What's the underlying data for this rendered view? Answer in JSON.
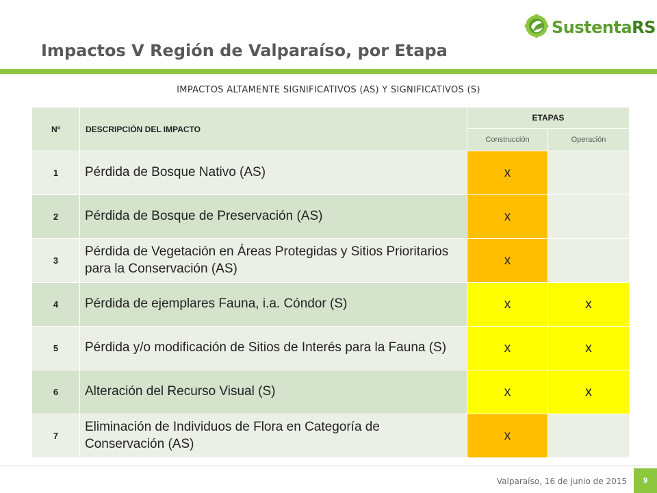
{
  "logo": {
    "part1": "Sustenta",
    "part2": "RSE",
    "icon": "gear-leaf-icon",
    "colors": {
      "light": "#5d9e30",
      "dark": "#3f7f1d"
    }
  },
  "title": "Impactos V Región de Valparaíso, por Etapa",
  "subtitle": "IMPACTOS ALTAMENTE SIGNIFICATIVOS (AS) Y SIGNIFICATIVOS (S)",
  "table": {
    "headers": {
      "num": "Nº",
      "description": "DESCRIPCIÓN DEL IMPACTO",
      "stages": "ETAPAS",
      "construction": "Construcción",
      "operation": "Operación"
    },
    "rows": [
      {
        "num": "1",
        "description": "Pérdida de Bosque Nativo  (AS)",
        "construction": "x",
        "operation": ""
      },
      {
        "num": "2",
        "description": "Pérdida de Bosque de Preservación (AS)",
        "construction": "x",
        "operation": ""
      },
      {
        "num": "3",
        "description": "Pérdida de Vegetación en Áreas Protegidas y Sitios Prioritarios para la Conservación (AS)",
        "construction": "x",
        "operation": ""
      },
      {
        "num": "4",
        "description": "Pérdida de ejemplares Fauna, i.a. Cóndor (S)",
        "construction": "x",
        "operation": "x"
      },
      {
        "num": "5",
        "description": "Pérdida y/o modificación de Sitios de Interés para la Fauna (S)",
        "construction": "x",
        "operation": "x"
      },
      {
        "num": "6",
        "description": "Alteración del Recurso Visual (S)",
        "construction": "x",
        "operation": "x"
      },
      {
        "num": "7",
        "description": "Eliminación de Individuos de Flora en Categoría de Conservación (AS)",
        "construction": "x",
        "operation": ""
      }
    ],
    "colors": {
      "as_highlight": "#ffbe00",
      "s_highlight": "#ffff00",
      "header_bg": "#dde8d4",
      "row_light": "#ebf0e6",
      "row_dark": "#d5e2cc"
    }
  },
  "footer": {
    "date": "Valparaíso, 16 de  junio de 2015",
    "page": "9",
    "accent": "#8dc63f"
  }
}
